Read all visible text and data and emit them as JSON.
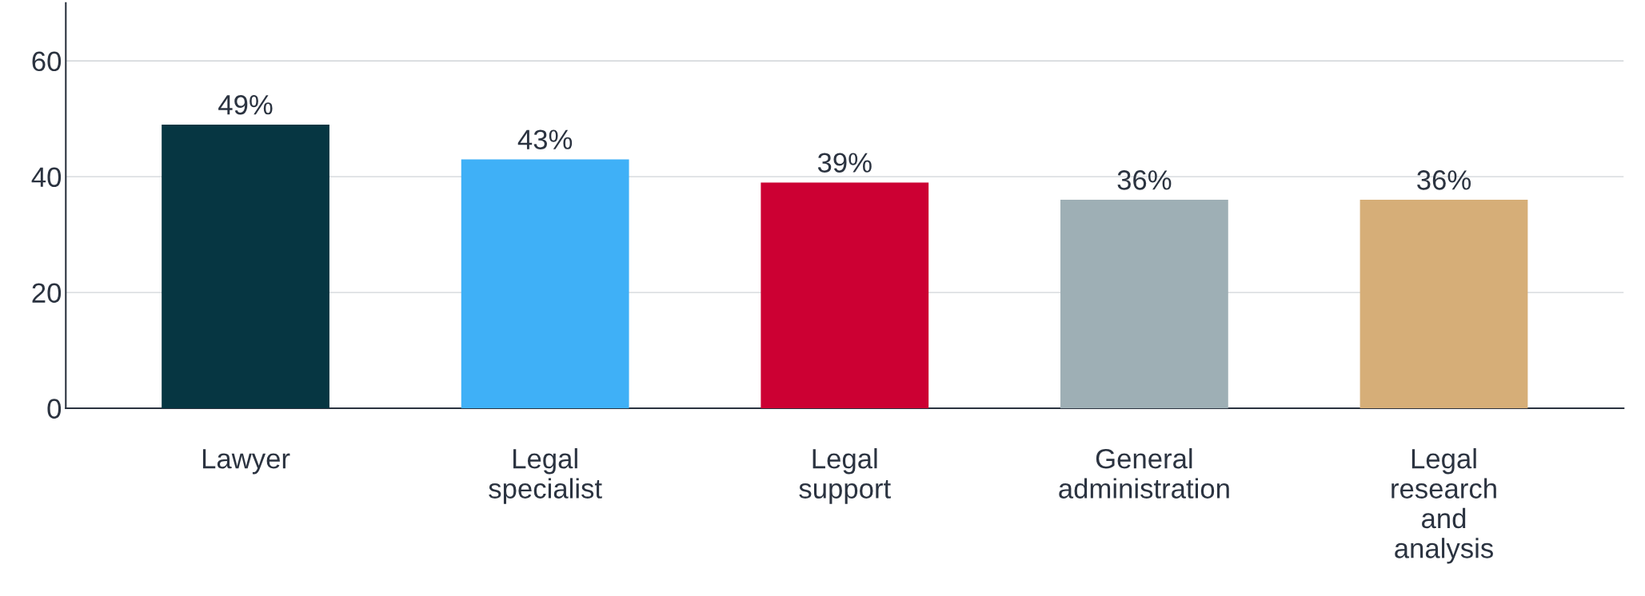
{
  "chart_data": {
    "type": "bar",
    "categories": [
      "Lawyer",
      "Legal\nspecialist",
      "Legal\nsupport",
      "General\nadministration",
      "Legal\nresearch\nand\nanalysis"
    ],
    "values": [
      49,
      43,
      39,
      36,
      36
    ],
    "colors": [
      "#063642",
      "#3fb0f7",
      "#cc0033",
      "#9eafb5",
      "#d6ae78"
    ],
    "value_labels": [
      "49%",
      "43%",
      "39%",
      "36%",
      "36%"
    ],
    "ylim": [
      0,
      70
    ],
    "yticks": [
      0,
      20,
      40,
      60
    ],
    "grid": "y"
  }
}
